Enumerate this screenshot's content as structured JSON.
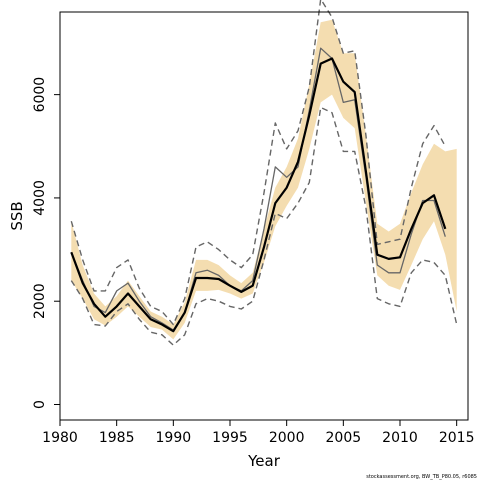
{
  "chart_data": {
    "type": "line",
    "xlabel": "Year",
    "ylabel": "SSB",
    "xlim": [
      1980,
      2016
    ],
    "ylim": [
      -300,
      7600
    ],
    "xticks": [
      1980,
      1985,
      1990,
      1995,
      2000,
      2005,
      2010,
      2015
    ],
    "yticks": [
      0,
      2000,
      4000,
      6000
    ],
    "footnote": "stockassessment.org, BW_TB_P80.05, r6085",
    "x": [
      1981,
      1982,
      1983,
      1984,
      1985,
      1986,
      1987,
      1988,
      1989,
      1990,
      1991,
      1992,
      1993,
      1994,
      1995,
      1996,
      1997,
      1998,
      1999,
      2000,
      2001,
      2002,
      2003,
      2004,
      2005,
      2006,
      2007,
      2008,
      2009,
      2010,
      2011,
      2012,
      2013,
      2014,
      2015
    ],
    "series": [
      {
        "role": "estimate",
        "values": [
          2950,
          2350,
          1950,
          1700,
          1900,
          2150,
          1900,
          1650,
          1550,
          1420,
          1780,
          2450,
          2450,
          2430,
          2300,
          2180,
          2300,
          3050,
          3900,
          4200,
          4700,
          5600,
          6600,
          6700,
          6250,
          6050,
          4500,
          2900,
          2820,
          2850,
          3400,
          3900,
          4050,
          3400,
          null
        ],
        "color": "#000000"
      },
      {
        "role": "ci-band",
        "lower": [
          2400,
          2050,
          1650,
          1530,
          1700,
          1900,
          1700,
          1500,
          1450,
          1260,
          1580,
          2200,
          2200,
          2220,
          2150,
          2050,
          2150,
          2750,
          3450,
          3850,
          4200,
          4950,
          5850,
          6000,
          5550,
          5350,
          3900,
          2500,
          2300,
          2220,
          2700,
          3200,
          3550,
          2900,
          1800
        ],
        "upper": [
          3550,
          2700,
          2150,
          1900,
          2100,
          2400,
          2100,
          1800,
          1700,
          1550,
          1980,
          2800,
          2800,
          2700,
          2500,
          2350,
          2550,
          3400,
          4200,
          4600,
          5150,
          6200,
          7400,
          7450,
          6800,
          6800,
          5200,
          3500,
          3350,
          3500,
          4100,
          4650,
          5050,
          4900,
          4950
        ],
        "color": "#f4ddb0"
      },
      {
        "role": "previous-estimate",
        "values": [
          2950,
          2400,
          1900,
          1780,
          2200,
          2350,
          2000,
          1700,
          1580,
          1440,
          1780,
          2550,
          2600,
          2500,
          2300,
          2200,
          2400,
          3400,
          4600,
          4400,
          4600,
          5700,
          6900,
          6700,
          5850,
          5900,
          4400,
          2700,
          2550,
          2550,
          3300,
          3950,
          3950,
          3250,
          null
        ],
        "color": "#666666"
      },
      {
        "role": "previous-upper",
        "values": [
          3550,
          2800,
          2200,
          2200,
          2650,
          2800,
          2250,
          1900,
          1800,
          1550,
          2050,
          3050,
          3150,
          3000,
          2800,
          2650,
          2900,
          4100,
          5450,
          4950,
          5300,
          6150,
          7850,
          7500,
          6800,
          6850,
          5200,
          3100,
          3150,
          3200,
          4200,
          5050,
          5400,
          5000,
          null
        ],
        "color": "#666666"
      },
      {
        "role": "previous-lower",
        "values": [
          2400,
          2050,
          1550,
          1520,
          1800,
          1950,
          1650,
          1400,
          1350,
          1150,
          1350,
          1950,
          2050,
          2000,
          1900,
          1850,
          2000,
          2800,
          3700,
          3600,
          3900,
          4300,
          5750,
          5650,
          4900,
          4900,
          3800,
          2050,
          1950,
          1900,
          2550,
          2800,
          2750,
          2500,
          1550
        ],
        "color": "#666666"
      }
    ]
  }
}
